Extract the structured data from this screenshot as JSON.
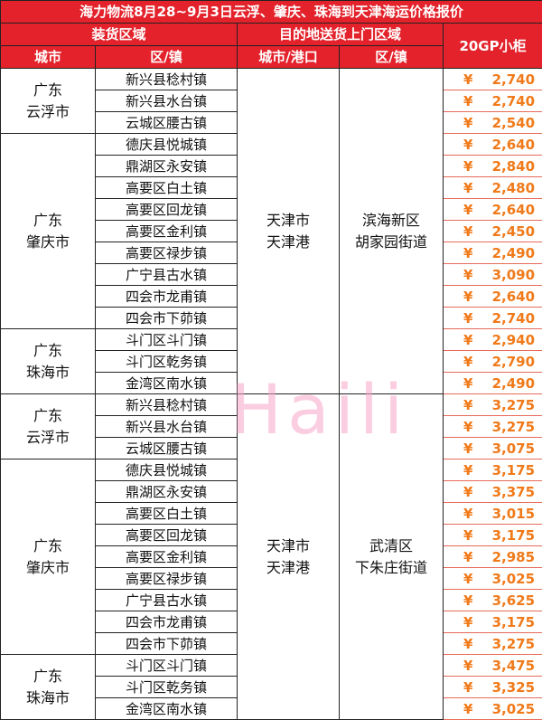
{
  "header": {
    "title": "海力物流8月28~9月3日云浮、肇庆、珠海到天津海运价格报价",
    "loading_area": "装货区域",
    "destination_area": "目的地送货上门区域",
    "price_column": "20GP小柜",
    "col_city": "城市",
    "col_town": "区/镇",
    "col_dest_city": "城市/港口",
    "col_district": "区/镇"
  },
  "currency": "¥",
  "watermark": "Haili",
  "blocks": [
    {
      "dest_city": [
        "天津市",
        "天津港"
      ],
      "district": [
        "滨海新区",
        "胡家园街道"
      ],
      "groups": [
        {
          "province": "广东",
          "city": "云浮市",
          "rows": [
            {
              "town": "新兴县稔村镇",
              "price": "2,740"
            },
            {
              "town": "新兴县水台镇",
              "price": "2,740"
            },
            {
              "town": "云城区腰古镇",
              "price": "2,540"
            }
          ]
        },
        {
          "province": "广东",
          "city": "肇庆市",
          "rows": [
            {
              "town": "德庆县悦城镇",
              "price": "2,640"
            },
            {
              "town": "鼎湖区永安镇",
              "price": "2,840"
            },
            {
              "town": "高要区白土镇",
              "price": "2,480"
            },
            {
              "town": "高要区回龙镇",
              "price": "2,640"
            },
            {
              "town": "高要区金利镇",
              "price": "2,450"
            },
            {
              "town": "高要区禄步镇",
              "price": "2,490"
            },
            {
              "town": "广宁县古水镇",
              "price": "3,090"
            },
            {
              "town": "四会市龙甫镇",
              "price": "2,640"
            },
            {
              "town": "四会市下茆镇",
              "price": "2,740"
            }
          ]
        },
        {
          "province": "广东",
          "city": "珠海市",
          "rows": [
            {
              "town": "斗门区斗门镇",
              "price": "2,940"
            },
            {
              "town": "斗门区乾务镇",
              "price": "2,790"
            },
            {
              "town": "金湾区南水镇",
              "price": "2,490"
            }
          ]
        }
      ]
    },
    {
      "dest_city": [
        "天津市",
        "天津港"
      ],
      "district": [
        "武清区",
        "下朱庄街道"
      ],
      "groups": [
        {
          "province": "广东",
          "city": "云浮市",
          "rows": [
            {
              "town": "新兴县稔村镇",
              "price": "3,275"
            },
            {
              "town": "新兴县水台镇",
              "price": "3,275"
            },
            {
              "town": "云城区腰古镇",
              "price": "3,075"
            }
          ]
        },
        {
          "province": "广东",
          "city": "肇庆市",
          "rows": [
            {
              "town": "德庆县悦城镇",
              "price": "3,175"
            },
            {
              "town": "鼎湖区永安镇",
              "price": "3,375"
            },
            {
              "town": "高要区白土镇",
              "price": "3,015"
            },
            {
              "town": "高要区回龙镇",
              "price": "3,175"
            },
            {
              "town": "高要区金利镇",
              "price": "2,985"
            },
            {
              "town": "高要区禄步镇",
              "price": "3,025"
            },
            {
              "town": "广宁县古水镇",
              "price": "3,625"
            },
            {
              "town": "四会市龙甫镇",
              "price": "3,175"
            },
            {
              "town": "四会市下茆镇",
              "price": "3,275"
            }
          ]
        },
        {
          "province": "广东",
          "city": "珠海市",
          "rows": [
            {
              "town": "斗门区斗门镇",
              "price": "3,475"
            },
            {
              "town": "斗门区乾务镇",
              "price": "3,325"
            },
            {
              "town": "金湾区南水镇",
              "price": "3,025"
            }
          ]
        }
      ]
    }
  ]
}
